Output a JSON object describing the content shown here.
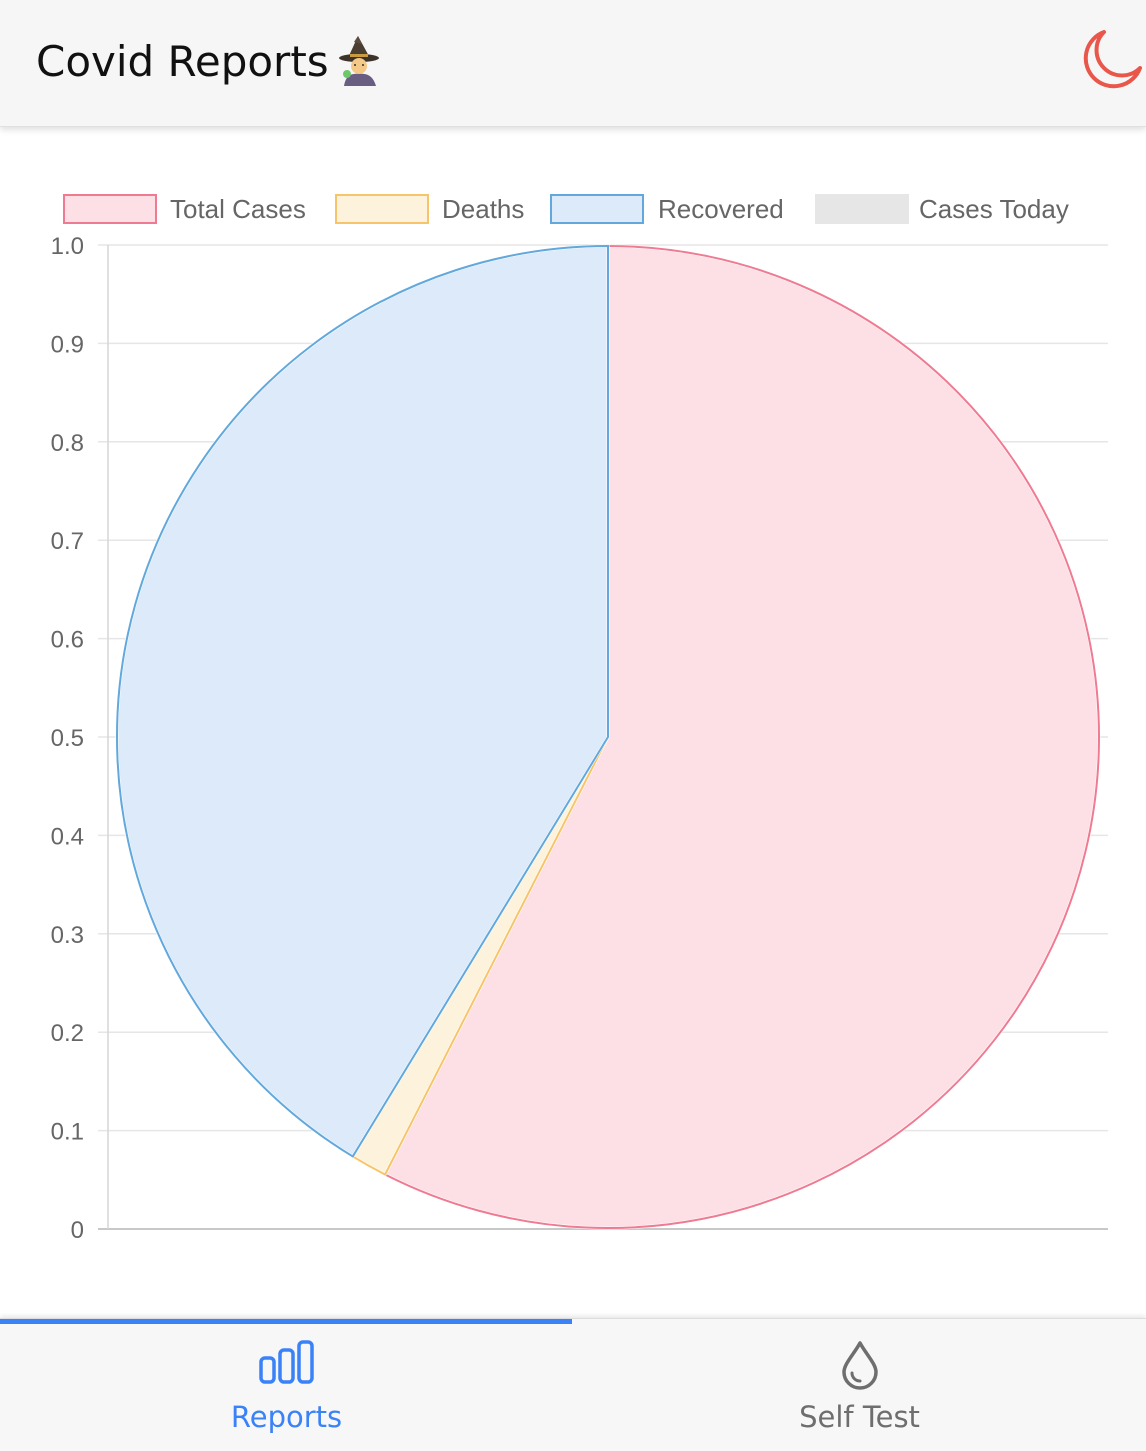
{
  "header": {
    "title": "Covid Reports",
    "title_icon": "wizard-emoji-icon",
    "theme_toggle_icon": "moon-icon",
    "theme_toggle_color": "#e8574a"
  },
  "chart_data": {
    "type": "pie",
    "title": "",
    "legend_position": "top",
    "labels": [
      "Total Cases",
      "Deaths",
      "Recovered",
      "Cases Today"
    ],
    "values": [
      57.5,
      1.2,
      41.3,
      0
    ],
    "colors": {
      "fill": [
        "#fde0e6",
        "#fdf3dc",
        "#dceaf9",
        "#e6e6e6"
      ],
      "border": [
        "#ee7b91",
        "#f7c46a",
        "#62a8dc",
        "#e6e6e6"
      ]
    },
    "y_axis": {
      "ticks": [
        "0",
        "0.1",
        "0.2",
        "0.3",
        "0.4",
        "0.5",
        "0.6",
        "0.7",
        "0.8",
        "0.9",
        "1.0"
      ],
      "range": [
        0,
        1
      ],
      "grid": true
    }
  },
  "tabbar": {
    "tabs": [
      {
        "label": "Reports",
        "icon": "bar-chart-icon",
        "active": true,
        "color": "#3a82f7"
      },
      {
        "label": "Self Test",
        "icon": "droplet-icon",
        "active": false,
        "color": "#6e6e6e"
      }
    ]
  }
}
